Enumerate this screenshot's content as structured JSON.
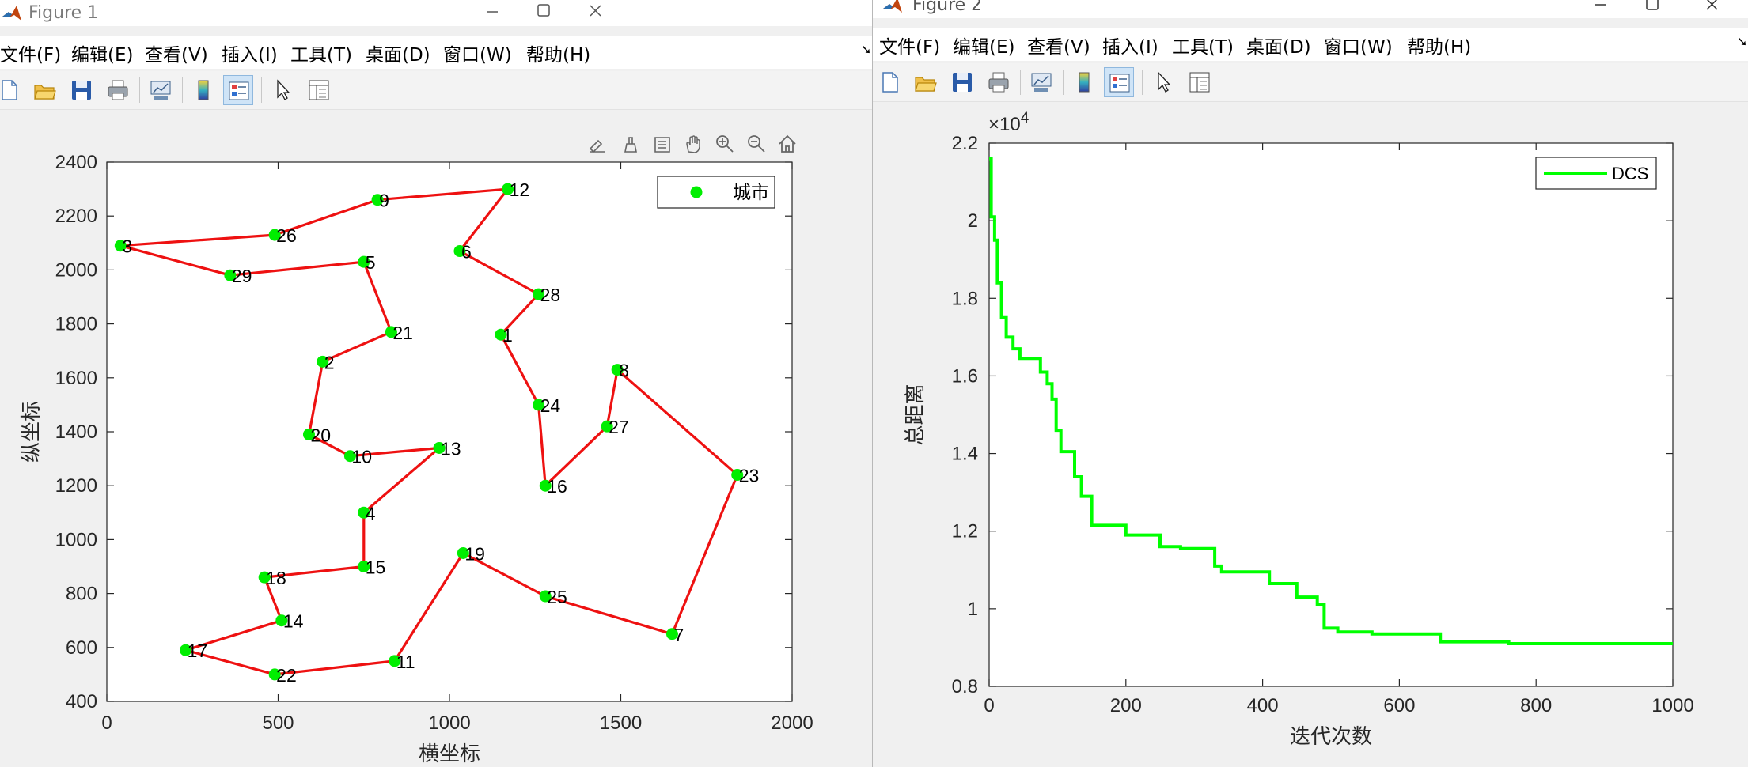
{
  "figure1": {
    "title": "Figure 1",
    "menu": [
      "文件(F)",
      "编辑(E)",
      "查看(V)",
      "插入(I)",
      "工具(T)",
      "桌面(D)",
      "窗口(W)",
      "帮助(H)"
    ],
    "axes_toolbar_icons": [
      "brush-data-icon",
      "data-tips-icon",
      "select-icon",
      "pan-icon",
      "zoom-in-icon",
      "zoom-out-icon",
      "home-icon"
    ]
  },
  "figure2": {
    "title": "Figure 2",
    "menu": [
      "文件(F)",
      "编辑(E)",
      "查看(V)",
      "插入(I)",
      "工具(T)",
      "桌面(D)",
      "窗口(W)",
      "帮助(H)"
    ]
  },
  "colors": {
    "route": "#ee1111",
    "city": "#00ee00",
    "curve": "#00ff00"
  },
  "chart_data": [
    {
      "type": "scatter",
      "title": "",
      "xlabel": "横坐标",
      "ylabel": "纵坐标",
      "xlim": [
        0,
        2000
      ],
      "ylim": [
        400,
        2400
      ],
      "xticks": [
        0,
        500,
        1000,
        1500,
        2000
      ],
      "yticks": [
        400,
        600,
        800,
        1000,
        1200,
        1400,
        1600,
        1800,
        2000,
        2200,
        2400
      ],
      "legend": {
        "label": "城市",
        "position": "top-right"
      },
      "cities": [
        {
          "id": "1",
          "x": 1150,
          "y": 1760
        },
        {
          "id": "2",
          "x": 630,
          "y": 1660
        },
        {
          "id": "3",
          "x": 40,
          "y": 2090
        },
        {
          "id": "4",
          "x": 750,
          "y": 1100
        },
        {
          "id": "5",
          "x": 750,
          "y": 2030
        },
        {
          "id": "6",
          "x": 1030,
          "y": 2070
        },
        {
          "id": "7",
          "x": 1650,
          "y": 650
        },
        {
          "id": "8",
          "x": 1490,
          "y": 1630
        },
        {
          "id": "9",
          "x": 790,
          "y": 2260
        },
        {
          "id": "10",
          "x": 710,
          "y": 1310
        },
        {
          "id": "11",
          "x": 840,
          "y": 550
        },
        {
          "id": "12",
          "x": 1170,
          "y": 2300
        },
        {
          "id": "13",
          "x": 970,
          "y": 1340
        },
        {
          "id": "14",
          "x": 510,
          "y": 700
        },
        {
          "id": "15",
          "x": 750,
          "y": 900
        },
        {
          "id": "16",
          "x": 1280,
          "y": 1200
        },
        {
          "id": "17",
          "x": 230,
          "y": 590
        },
        {
          "id": "18",
          "x": 460,
          "y": 860
        },
        {
          "id": "19",
          "x": 1040,
          "y": 950
        },
        {
          "id": "20",
          "x": 590,
          "y": 1390
        },
        {
          "id": "21",
          "x": 830,
          "y": 1770
        },
        {
          "id": "22",
          "x": 490,
          "y": 500
        },
        {
          "id": "23",
          "x": 1840,
          "y": 1240
        },
        {
          "id": "24",
          "x": 1260,
          "y": 1500
        },
        {
          "id": "25",
          "x": 1280,
          "y": 790
        },
        {
          "id": "26",
          "x": 490,
          "y": 2130
        },
        {
          "id": "27",
          "x": 1460,
          "y": 1420
        },
        {
          "id": "28",
          "x": 1260,
          "y": 1910
        },
        {
          "id": "29",
          "x": 360,
          "y": 1980
        }
      ],
      "route": [
        "3",
        "26",
        "9",
        "12",
        "6",
        "28",
        "1",
        "24",
        "16",
        "27",
        "8",
        "23",
        "7",
        "25",
        "19",
        "11",
        "22",
        "17",
        "14",
        "18",
        "15",
        "4",
        "13",
        "10",
        "20",
        "2",
        "21",
        "5",
        "29",
        "3"
      ]
    },
    {
      "type": "line",
      "title": "",
      "xlabel": "迭代次数",
      "ylabel": "总距离",
      "xlim": [
        0,
        1000
      ],
      "ylim": [
        0.8,
        2.2
      ],
      "y_scale_factor_label": "×10",
      "y_scale_exponent": "4",
      "xticks": [
        0,
        200,
        400,
        600,
        800,
        1000
      ],
      "yticks": [
        0.8,
        1,
        1.2,
        1.4,
        1.6,
        1.8,
        2,
        2.2
      ],
      "legend": {
        "label": "DCS",
        "position": "top-right"
      },
      "series": [
        {
          "name": "DCS",
          "x": [
            0,
            3,
            8,
            12,
            18,
            25,
            35,
            45,
            75,
            85,
            92,
            98,
            105,
            125,
            135,
            150,
            200,
            250,
            280,
            330,
            340,
            410,
            450,
            480,
            490,
            510,
            560,
            660,
            760,
            1000
          ],
          "y": [
            2.16,
            2.01,
            1.95,
            1.84,
            1.75,
            1.7,
            1.67,
            1.645,
            1.61,
            1.58,
            1.54,
            1.46,
            1.405,
            1.34,
            1.29,
            1.215,
            1.19,
            1.16,
            1.155,
            1.11,
            1.095,
            1.065,
            1.03,
            1.01,
            0.95,
            0.94,
            0.935,
            0.915,
            0.91,
            0.91
          ]
        }
      ]
    }
  ]
}
